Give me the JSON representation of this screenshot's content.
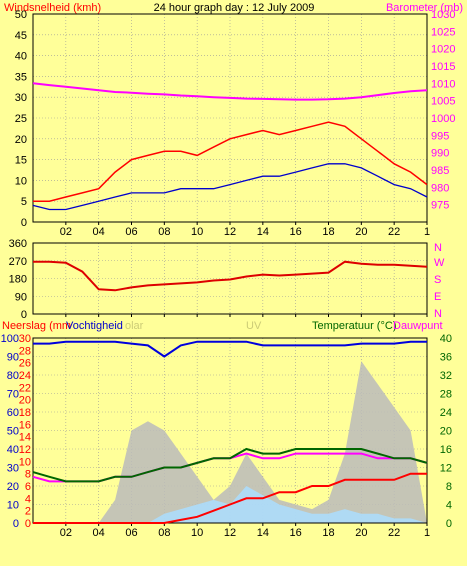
{
  "title": "24 hour graph day : 12 July 2009",
  "hour_ticks": [
    "02",
    "04",
    "06",
    "08",
    "10",
    "12",
    "14",
    "16",
    "18",
    "20",
    "22",
    "1"
  ],
  "colors": {
    "background": "#FFFF99",
    "wind": "#FF0000",
    "wind_avg": "#0000CC",
    "barometer": "#FF00FF",
    "direction": "#DD0000",
    "humidity": "#0000DD",
    "temperature": "#006600",
    "dewpoint": "#FF00FF",
    "rain": "#FF0000",
    "solar": "#BBBBBB",
    "uv": "#AADDFF"
  },
  "chart_data": [
    {
      "type": "line",
      "name": "wind-barometer",
      "ylabel": "Windsnelheid (kmh)",
      "y2label": "Barometer (mb)",
      "ylim": [
        0,
        50
      ],
      "y2lim": [
        970,
        1030
      ],
      "yticks": [
        0,
        5,
        10,
        15,
        20,
        25,
        30,
        35,
        40,
        45,
        50
      ],
      "y2ticks": [
        975,
        980,
        985,
        990,
        995,
        1000,
        1005,
        1010,
        1015,
        1020,
        1025,
        1030
      ],
      "x": [
        0,
        1,
        2,
        3,
        4,
        5,
        6,
        7,
        8,
        9,
        10,
        11,
        12,
        13,
        14,
        15,
        16,
        17,
        18,
        19,
        20,
        21,
        22,
        23,
        24
      ],
      "series": [
        {
          "name": "gust",
          "values": [
            5,
            5,
            6,
            7,
            8,
            12,
            15,
            16,
            17,
            17,
            16,
            18,
            20,
            21,
            22,
            21,
            22,
            23,
            24,
            23,
            20,
            17,
            14,
            12,
            9
          ]
        },
        {
          "name": "average",
          "values": [
            4,
            3,
            3,
            4,
            5,
            6,
            7,
            7,
            7,
            8,
            8,
            8,
            9,
            10,
            11,
            11,
            12,
            13,
            14,
            14,
            13,
            11,
            9,
            8,
            6
          ]
        },
        {
          "name": "barometer",
          "values": [
            1010,
            1009.5,
            1009,
            1008.5,
            1008,
            1007.5,
            1007.3,
            1007,
            1006.8,
            1006.5,
            1006.3,
            1006,
            1005.8,
            1005.6,
            1005.5,
            1005.4,
            1005.3,
            1005.3,
            1005.4,
            1005.6,
            1006,
            1006.6,
            1007.2,
            1007.7,
            1008
          ]
        }
      ]
    },
    {
      "type": "line",
      "name": "wind-direction",
      "yticks": [
        0,
        90,
        180,
        270,
        360
      ],
      "y2ticks": [
        "N",
        "W",
        "S",
        "E",
        "N"
      ],
      "ylim": [
        0,
        360
      ],
      "x": [
        0,
        1,
        2,
        3,
        4,
        5,
        6,
        7,
        8,
        9,
        10,
        11,
        12,
        13,
        14,
        15,
        16,
        17,
        18,
        19,
        20,
        21,
        22,
        23,
        24
      ],
      "series": [
        {
          "name": "direction",
          "values": [
            265,
            265,
            260,
            215,
            125,
            120,
            135,
            145,
            150,
            155,
            160,
            170,
            175,
            190,
            200,
            195,
            200,
            205,
            210,
            265,
            255,
            250,
            250,
            245,
            240
          ]
        }
      ]
    },
    {
      "type": "line",
      "name": "rain-humidity-temperature",
      "labels": [
        "Neerslag (mm",
        "Vochtigheid",
        "olar",
        "UV",
        "Temperatuur (°C)",
        "Dauwpunt"
      ],
      "y_humidity_ticks": [
        0,
        10,
        20,
        30,
        40,
        50,
        60,
        70,
        80,
        90,
        100
      ],
      "y_rain_ticks": [
        0,
        2,
        4,
        6,
        8,
        10,
        12,
        14,
        16,
        18,
        20,
        22,
        24,
        26,
        28,
        30
      ],
      "y_temp_ticks": [
        0,
        4,
        8,
        12,
        16,
        20,
        24,
        28,
        32,
        36,
        40
      ],
      "x": [
        0,
        1,
        2,
        3,
        4,
        5,
        6,
        7,
        8,
        9,
        10,
        11,
        12,
        13,
        14,
        15,
        16,
        17,
        18,
        19,
        20,
        21,
        22,
        23,
        24
      ],
      "series": [
        {
          "name": "humidity",
          "values": [
            97,
            97,
            98,
            98,
            98,
            98,
            97,
            96,
            90,
            96,
            98,
            98,
            98,
            98,
            96,
            96,
            96,
            96,
            96,
            96,
            97,
            97,
            97,
            98,
            98
          ]
        },
        {
          "name": "temperature",
          "values": [
            11,
            10,
            9,
            9,
            9,
            10,
            10,
            11,
            12,
            12,
            13,
            14,
            14,
            16,
            15,
            15,
            16,
            16,
            16,
            16,
            16,
            15,
            14,
            14,
            13
          ]
        },
        {
          "name": "dewpoint",
          "values": [
            10,
            9,
            9,
            9,
            9,
            10,
            10,
            11,
            12,
            12,
            13,
            14,
            14,
            15,
            14,
            14,
            15,
            15,
            15,
            15,
            15,
            14,
            14,
            14,
            13
          ]
        },
        {
          "name": "rain",
          "values": [
            0,
            0,
            0,
            0,
            0,
            0,
            0,
            0,
            0,
            0.5,
            1,
            2,
            3,
            4,
            4,
            5,
            5,
            6,
            6,
            7,
            7,
            7,
            7,
            8,
            8
          ]
        },
        {
          "name": "solar",
          "values": [
            0,
            0,
            0,
            0,
            0,
            5,
            20,
            22,
            20,
            15,
            10,
            5,
            8,
            15,
            10,
            5,
            4,
            3,
            5,
            15,
            35,
            30,
            25,
            20,
            0
          ]
        },
        {
          "name": "uv",
          "values": [
            0,
            0,
            0,
            0,
            0,
            0,
            0,
            0,
            2,
            3,
            4,
            5,
            4,
            8,
            6,
            4,
            3,
            2,
            2,
            3,
            2,
            2,
            1,
            1,
            0
          ]
        }
      ]
    }
  ]
}
